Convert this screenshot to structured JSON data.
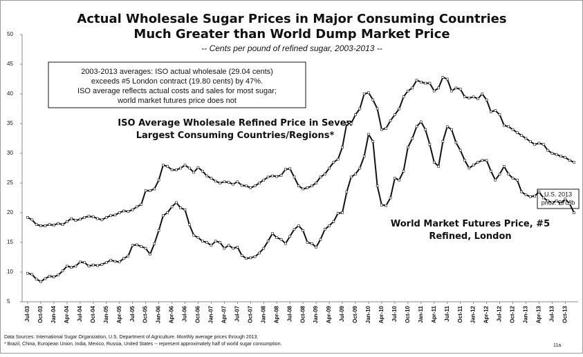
{
  "chart_data": {
    "type": "line",
    "title": [
      "Actual Wholesale Sugar Prices in Major Consuming Countries",
      "Much Greater than World Dump Market Price"
    ],
    "subtitle": "-- Cents per pound of refined sugar, 2003-2013 --",
    "annotation": [
      "2003-2013 averages: ISO actual wholesale (29.04 cents)",
      "exceeds #5 London contract (19.80 cents) by 47%.",
      "ISO average reflects actual costs and sales for most sugar;",
      "world market futures price does not"
    ],
    "callout": [
      "U.S. 2013",
      "price: 27c/lb"
    ],
    "footnotes": [
      "Data Sources: International Sugar Organization, U.S. Department of Agriculture. Monthly average prices through 2013.",
      "* Brazil, China, European Union, India, Mexico, Russia, United States -- represent approximately half of world sugar consumption."
    ],
    "page_number": "11a",
    "categories": [
      "Jul-03",
      null,
      null,
      "Oct-03",
      null,
      null,
      "Jan-04",
      null,
      null,
      "Apr-04",
      null,
      null,
      "Jul-04",
      null,
      null,
      "Oct-04",
      null,
      null,
      "Jan-05",
      null,
      null,
      "Apr-05",
      null,
      null,
      "Jul-05",
      null,
      null,
      "Oct-05",
      null,
      null,
      "Jan-06",
      null,
      null,
      "Apr-06",
      null,
      null,
      "Jul-06",
      null,
      null,
      "Oct-06",
      null,
      null,
      "Jan-07",
      null,
      null,
      "Apr-07",
      null,
      null,
      "Jul-07",
      null,
      null,
      "Oct-07",
      null,
      null,
      "Jan-08",
      null,
      null,
      "Apr-08",
      null,
      null,
      "Jul-08",
      null,
      null,
      "Oct-08",
      null,
      null,
      "Jan-09",
      null,
      null,
      "Apr-09",
      null,
      null,
      "Jul-09",
      null,
      null,
      "Oct-09",
      null,
      null,
      "Jan-10",
      null,
      null,
      "Apr-10",
      null,
      null,
      "Jul-10",
      null,
      null,
      "Oct-10",
      null,
      null,
      "Jan-11",
      null,
      null,
      "Apr-11",
      null,
      null,
      "Jul-11",
      null,
      null,
      "Oct-11",
      null,
      null,
      "Jan-12",
      null,
      null,
      "Apr-12",
      null,
      null,
      "Jul-12",
      null,
      null,
      "Oct-12",
      null,
      null,
      "Jan-13",
      null,
      null,
      "Apr-13",
      null,
      null,
      "Jul-13",
      null,
      null,
      "Oct-13",
      null,
      null
    ],
    "series": [
      {
        "name": "ISO Average Wholesale Refined Price in Seven Largest Consuming Countries/Regions*",
        "color": "#111111",
        "values": [
          19.2,
          18.8,
          18.0,
          17.8,
          17.8,
          18.0,
          17.9,
          18.2,
          18.0,
          18.5,
          19.0,
          18.7,
          18.9,
          19.2,
          19.4,
          19.3,
          19.0,
          18.8,
          19.2,
          19.5,
          19.6,
          20.0,
          20.3,
          20.2,
          20.5,
          21.0,
          21.4,
          23.7,
          23.7,
          24.0,
          25.5,
          28.0,
          27.8,
          27.2,
          27.2,
          27.5,
          28.0,
          27.5,
          26.8,
          27.6,
          27.0,
          26.2,
          25.8,
          25.3,
          25.0,
          25.2,
          25.1,
          24.8,
          25.2,
          24.6,
          24.5,
          24.2,
          24.5,
          25.0,
          25.5,
          26.0,
          26.2,
          26.1,
          26.3,
          27.3,
          27.4,
          26.0,
          24.5,
          24.0,
          24.2,
          24.5,
          25.0,
          26.0,
          26.5,
          27.5,
          28.5,
          29.0,
          31.0,
          35.0,
          35.0,
          36.5,
          37.5,
          40.0,
          40.2,
          39.0,
          37.5,
          34.0,
          34.2,
          35.5,
          36.5,
          37.5,
          39.5,
          40.5,
          41.0,
          42.3,
          42.0,
          41.8,
          41.8,
          40.5,
          41.0,
          42.8,
          42.5,
          40.5,
          41.0,
          40.8,
          39.5,
          39.3,
          39.5,
          39.2,
          40.0,
          39.0,
          37.0,
          37.2,
          36.5,
          34.7,
          34.5,
          34.0,
          33.5,
          33.0,
          32.5,
          32.0,
          31.5,
          31.7,
          31.5,
          30.5,
          30.0,
          29.8,
          29.5,
          29.3,
          28.8,
          28.5
        ]
      },
      {
        "name": "World Market Futures Price, #5 Refined, London",
        "color": "#111111",
        "values": [
          9.8,
          9.6,
          8.8,
          8.4,
          8.9,
          9.3,
          9.2,
          9.5,
          10.2,
          11.0,
          10.8,
          11.0,
          11.7,
          11.6,
          11.0,
          11.2,
          11.1,
          11.3,
          11.6,
          12.0,
          11.8,
          11.7,
          12.3,
          12.7,
          14.5,
          14.6,
          14.3,
          14.0,
          13.0,
          14.8,
          17.0,
          19.5,
          20.0,
          21.0,
          21.7,
          20.8,
          20.5,
          18.0,
          16.2,
          15.8,
          15.2,
          15.0,
          14.5,
          15.2,
          15.0,
          14.0,
          14.5,
          14.0,
          14.2,
          12.8,
          12.3,
          12.4,
          12.6,
          13.2,
          14.0,
          15.2,
          16.5,
          15.8,
          15.5,
          14.8,
          16.0,
          17.2,
          17.8,
          17.0,
          15.0,
          14.8,
          14.2,
          15.5,
          17.2,
          17.8,
          18.5,
          19.9,
          20.0,
          23.5,
          26.0,
          26.5,
          27.5,
          29.5,
          33.2,
          32.0,
          24.5,
          21.3,
          21.2,
          22.5,
          25.8,
          25.5,
          27.0,
          31.0,
          32.5,
          34.5,
          35.3,
          34.0,
          31.5,
          28.5,
          27.8,
          32.0,
          34.5,
          34.0,
          31.8,
          30.5,
          28.8,
          27.5,
          28.0,
          28.5,
          28.8,
          28.8,
          27.0,
          25.5,
          26.5,
          27.8,
          26.5,
          25.8,
          25.5,
          23.5,
          23.0,
          22.7,
          22.8,
          23.5,
          22.5,
          22.0,
          21.7,
          22.0,
          21.5,
          22.3,
          21.5,
          20.0
        ]
      }
    ],
    "ylim": [
      5,
      50
    ],
    "yticks": [
      5,
      10,
      15,
      20,
      25,
      30,
      35,
      40,
      45,
      50
    ],
    "grid": false
  }
}
